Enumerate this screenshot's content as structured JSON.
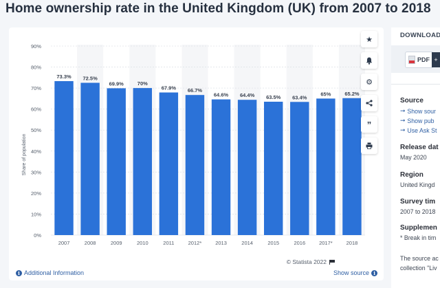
{
  "page": {
    "title": "Home ownership rate in the United Kingdom (UK) from 2007 to 2018"
  },
  "chart_data": {
    "type": "bar",
    "categories": [
      "2007",
      "2008",
      "2009",
      "2010",
      "2011",
      "2012*",
      "2013",
      "2014",
      "2015",
      "2016",
      "2017*",
      "2018"
    ],
    "values": [
      73.3,
      72.5,
      69.9,
      70,
      67.9,
      66.7,
      64.6,
      64.4,
      63.5,
      63.4,
      65,
      65.2
    ],
    "value_labels": [
      "73.3%",
      "72.5%",
      "69.9%",
      "70%",
      "67.9%",
      "66.7%",
      "64.6%",
      "64.4%",
      "63.5%",
      "63.4%",
      "65%",
      "65.2%"
    ],
    "ylabel": "Share of population",
    "xlabel": "",
    "ylim": [
      0,
      90
    ],
    "yticks": [
      "0%",
      "10%",
      "20%",
      "30%",
      "40%",
      "50%",
      "60%",
      "70%",
      "80%",
      "90%"
    ],
    "grid": true,
    "bar_color": "#2b72d8"
  },
  "footer": {
    "copyright": "© Statista 2022",
    "additional_info": "Additional Information",
    "show_source": "Show source"
  },
  "toolbar": {
    "icons": [
      "star-icon",
      "bell-icon",
      "gear-icon",
      "share-icon",
      "quote-icon",
      "print-icon"
    ]
  },
  "download": {
    "heading": "DOWNLOAD",
    "pdf_label": "PDF",
    "plus_label": "+"
  },
  "sidebar": {
    "source_heading": "Source",
    "source_links": [
      "Show sour",
      "Show pub",
      "Use Ask St"
    ],
    "release_heading": "Release dat",
    "release_value": "May 2020",
    "region_heading": "Region",
    "region_value": "United Kingd",
    "survey_heading": "Survey tim",
    "survey_value": "2007 to 2018",
    "supplement_heading": "Supplemen",
    "supplement_value": "* Break in tim",
    "note_line1": "The source ac",
    "note_line2": "collection \"Liv"
  }
}
